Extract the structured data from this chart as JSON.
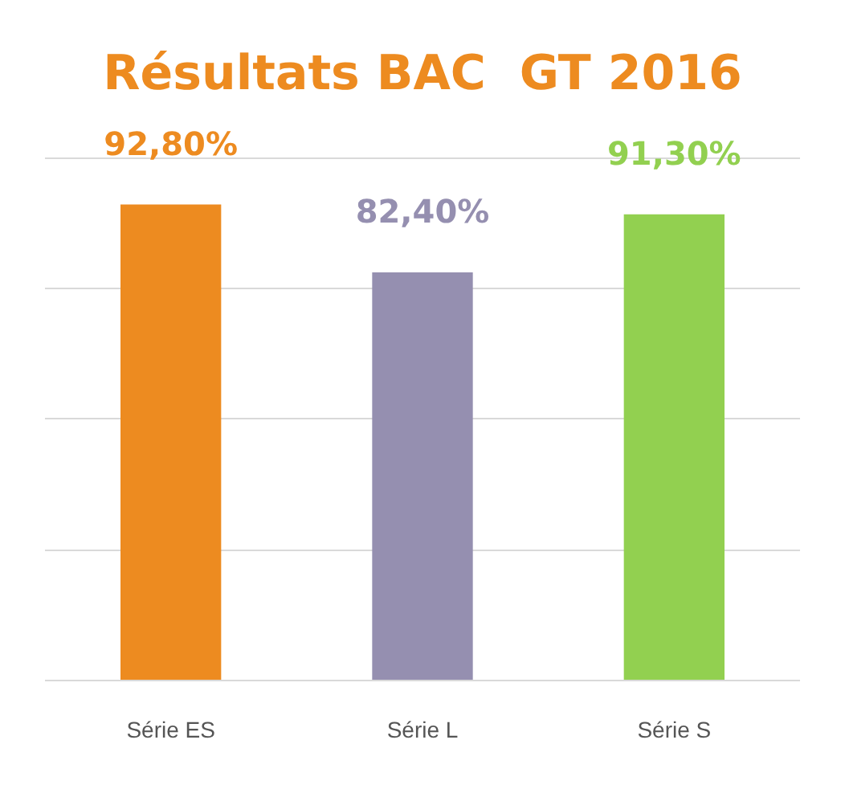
{
  "chart_data": {
    "type": "bar",
    "title": "Résultats BAC  GT 2016",
    "categories": [
      "Série ES",
      "Série L",
      "Série S"
    ],
    "values": [
      92.8,
      82.4,
      91.3
    ],
    "colors": [
      "#ed8b20",
      "#958fb0",
      "#92d050"
    ],
    "value_labels": [
      "92,80%",
      "82,40%",
      "91,30%"
    ],
    "ylim": [
      20,
      100
    ],
    "yticks": [
      {
        "value": 20,
        "label": null
      },
      {
        "value": 40,
        "label": null
      },
      {
        "value": 60,
        "label": null
      },
      {
        "value": 80,
        "label": null
      },
      {
        "value": 100,
        "label": null
      }
    ],
    "grid": "y",
    "tick_labels": "x"
  }
}
